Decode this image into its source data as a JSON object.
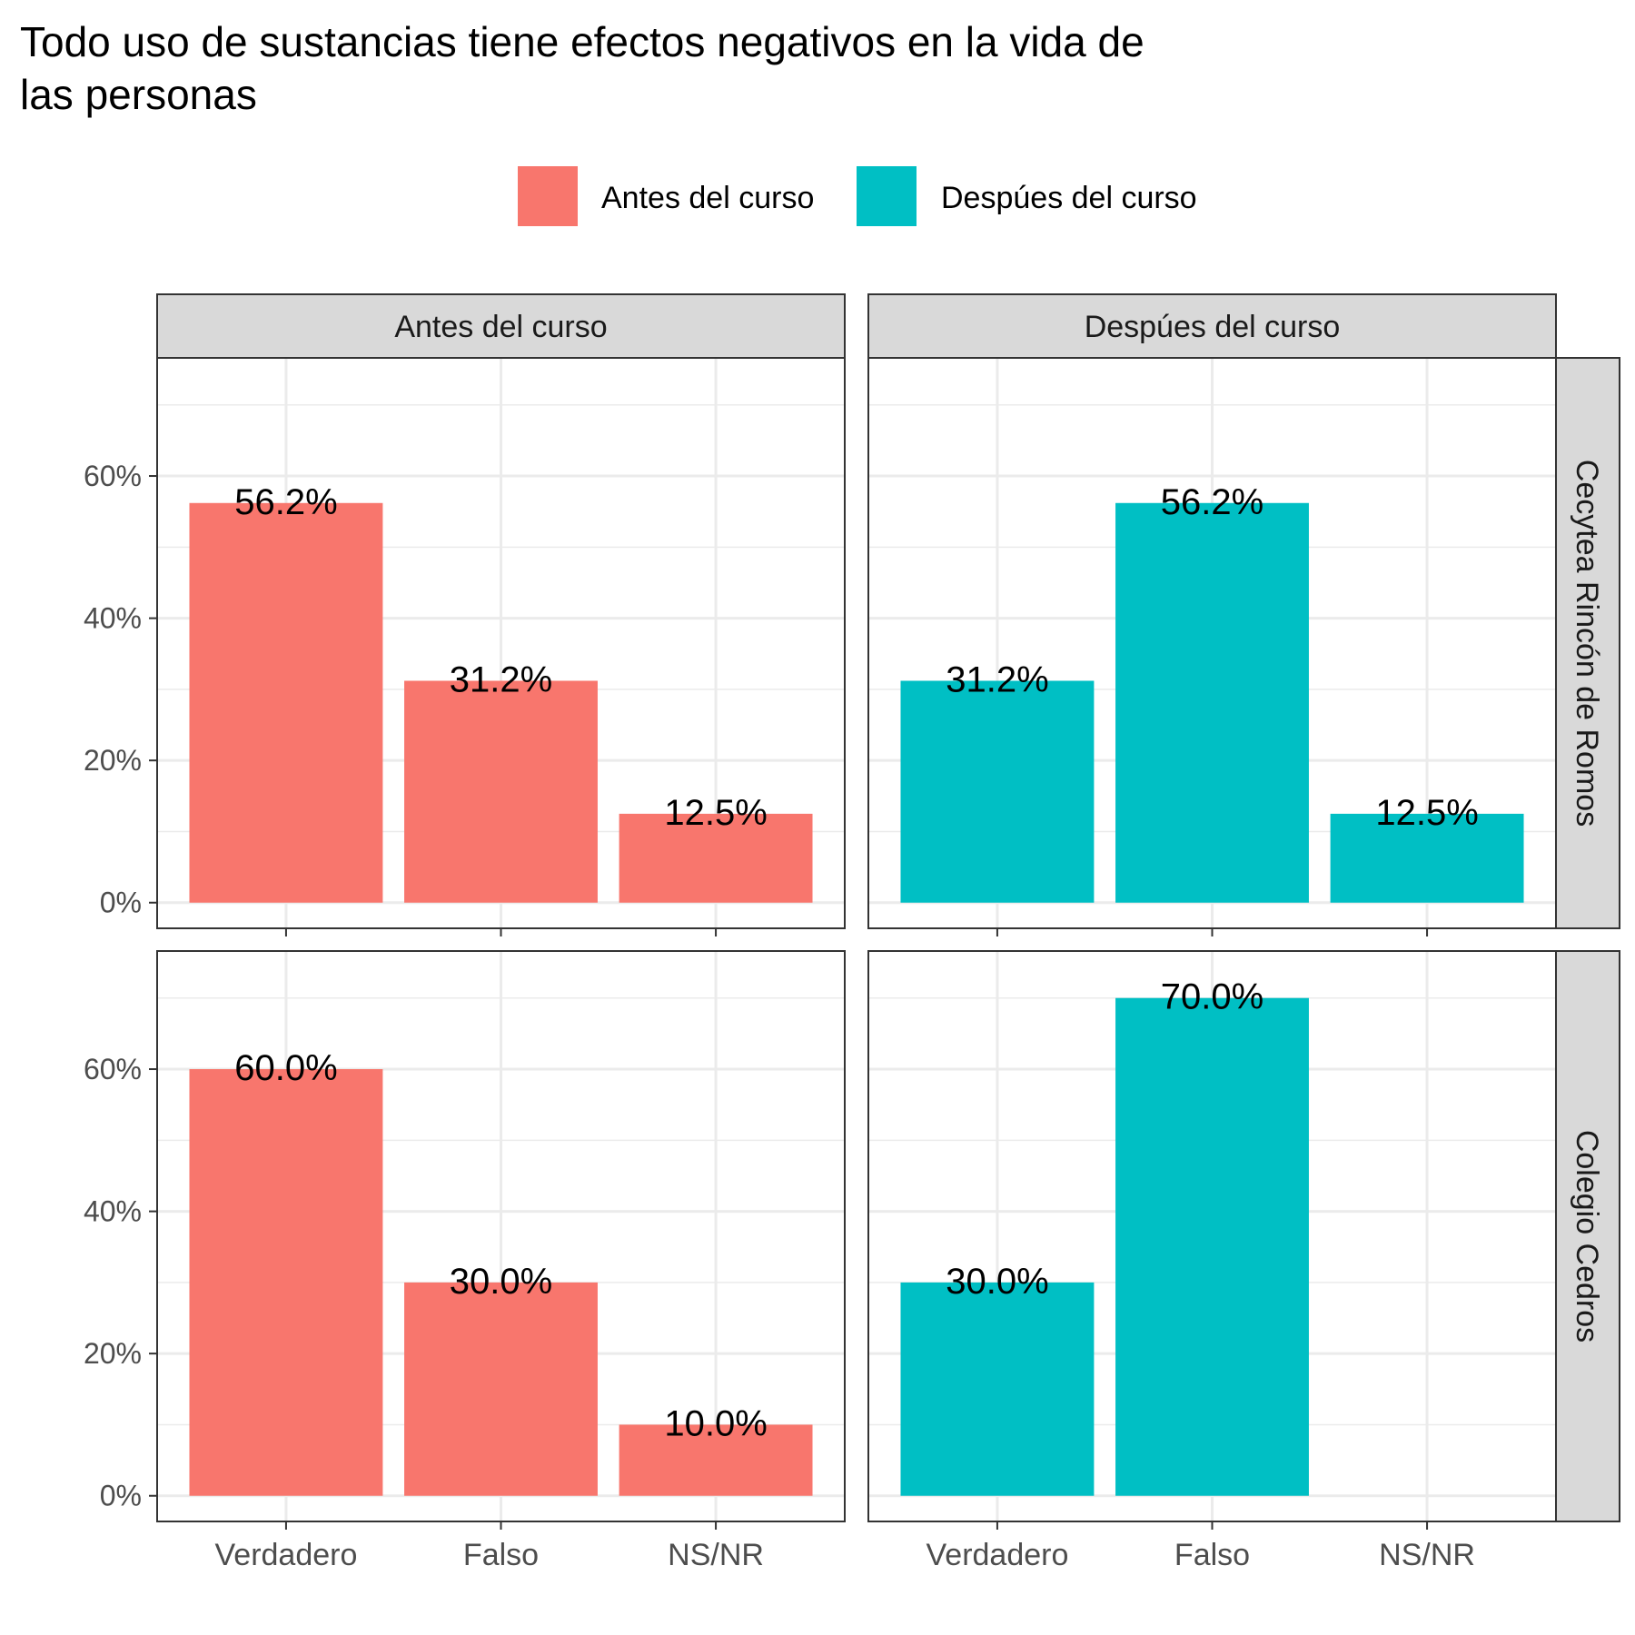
{
  "chart_data": {
    "type": "bar",
    "title": "Todo uso de sustancias tiene efectos negativos en la vida de las personas",
    "title_lines": [
      "Todo uso de sustancias tiene efectos negativos en la vida de",
      "las personas"
    ],
    "legend": {
      "placement": "top",
      "entries": [
        {
          "label": "Antes del curso",
          "color": "#F8766D"
        },
        {
          "label": "Despúes del curso",
          "color": "#00BFC4"
        }
      ]
    },
    "categories": [
      "Verdadero",
      "Falso",
      "NS/NR"
    ],
    "column_facets": [
      "Antes del curso",
      "Despúes del curso"
    ],
    "row_facets": [
      "Cecytea Rincón de Romos",
      "Colegio Cedros"
    ],
    "y_ticks": [
      0,
      20,
      40,
      60
    ],
    "y_tick_labels": [
      "0%",
      "20%",
      "40%",
      "60%"
    ],
    "ylim": [
      0,
      73
    ],
    "grid": true,
    "xlabel": "",
    "ylabel": "",
    "panels": [
      {
        "row": "Cecytea Rincón de Romos",
        "column": "Antes del curso",
        "values": [
          56.2,
          31.2,
          12.5
        ],
        "labels": [
          "56.2%",
          "31.2%",
          "12.5%"
        ]
      },
      {
        "row": "Cecytea Rincón de Romos",
        "column": "Despúes del curso",
        "values": [
          31.2,
          56.2,
          12.5
        ],
        "labels": [
          "31.2%",
          "56.2%",
          "12.5%"
        ]
      },
      {
        "row": "Colegio Cedros",
        "column": "Antes del curso",
        "values": [
          60.0,
          30.0,
          10.0
        ],
        "labels": [
          "60.0%",
          "30.0%",
          "10.0%"
        ]
      },
      {
        "row": "Colegio Cedros",
        "column": "Despúes del curso",
        "values": [
          30.0,
          70.0,
          null
        ],
        "labels": [
          "30.0%",
          "70.0%",
          null
        ]
      }
    ]
  }
}
